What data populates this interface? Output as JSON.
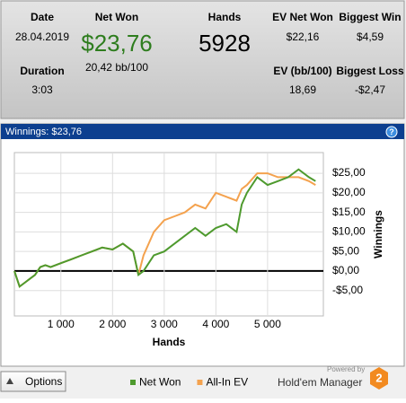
{
  "stats": {
    "date": {
      "label": "Date",
      "value": "28.04.2019"
    },
    "net_won": {
      "label": "Net Won",
      "value": "$23,76",
      "sub": "20,42 bb/100"
    },
    "hands": {
      "label": "Hands",
      "value": "5928"
    },
    "ev_net_won": {
      "label": "EV Net Won",
      "value": "$22,16"
    },
    "biggest_win": {
      "label": "Biggest Win",
      "value": "$4,59"
    },
    "duration": {
      "label": "Duration",
      "value": "3:03"
    },
    "ev_bb": {
      "label": "EV (bb/100)",
      "value": "18,69"
    },
    "biggest_loss": {
      "label": "Biggest Loss",
      "value": "-$2,47"
    }
  },
  "panel_title": "Winnings: $23,76",
  "chart_data": {
    "type": "line",
    "xlabel": "Hands",
    "ylabel": "Winnings",
    "x": [
      100,
      200,
      300,
      400,
      500,
      600,
      700,
      800,
      1000,
      1200,
      1400,
      1600,
      1800,
      2000,
      2200,
      2400,
      2500,
      2600,
      2800,
      3000,
      3200,
      3400,
      3600,
      3800,
      4000,
      4200,
      4400,
      4500,
      4600,
      4800,
      5000,
      5200,
      5400,
      5600,
      5800,
      5928
    ],
    "series": [
      {
        "name": "Net Won",
        "color": "#4e9a2e",
        "values": [
          0,
          -4,
          -3,
          -2,
          -1,
          1,
          1.5,
          1,
          2,
          3,
          4,
          5,
          6,
          5.5,
          7,
          5,
          -1,
          0,
          4,
          5,
          7,
          9,
          11,
          9,
          11,
          12,
          10,
          17,
          20,
          24,
          22,
          23,
          24,
          26,
          24,
          23
        ]
      },
      {
        "name": "All-In EV",
        "color": "#f4a24e",
        "values": [
          0,
          -4,
          -3,
          -2,
          -1,
          1,
          1.5,
          1,
          2,
          3,
          4,
          5,
          6,
          5.5,
          7,
          5,
          -1,
          4,
          10,
          13,
          14,
          15,
          17,
          16,
          20,
          19,
          18,
          21,
          22,
          25,
          25,
          24,
          24,
          24,
          23,
          22
        ]
      }
    ],
    "xlim": [
      100,
      6080
    ],
    "ylim": [
      -11.5,
      30.3
    ],
    "xticks": [
      {
        "value": 1000,
        "label": "1 000"
      },
      {
        "value": 2000,
        "label": "2 000"
      },
      {
        "value": 3000,
        "label": "3 000"
      },
      {
        "value": 4000,
        "label": "4 000"
      },
      {
        "value": 5000,
        "label": "5 000"
      }
    ],
    "yticks": [
      {
        "value": -5,
        "label": "-$5,00"
      },
      {
        "value": 0,
        "label": "$0,00"
      },
      {
        "value": 5,
        "label": "$5,00"
      },
      {
        "value": 10,
        "label": "$10,00"
      },
      {
        "value": 15,
        "label": "$15,00"
      },
      {
        "value": 20,
        "label": "$20,00"
      },
      {
        "value": 25,
        "label": "$25,00"
      }
    ],
    "grid": true,
    "legend": "bottom"
  },
  "footer": {
    "options": "Options",
    "powered_by": "Powered by",
    "brand": "Hold'em Manager",
    "brand_num": "2"
  }
}
